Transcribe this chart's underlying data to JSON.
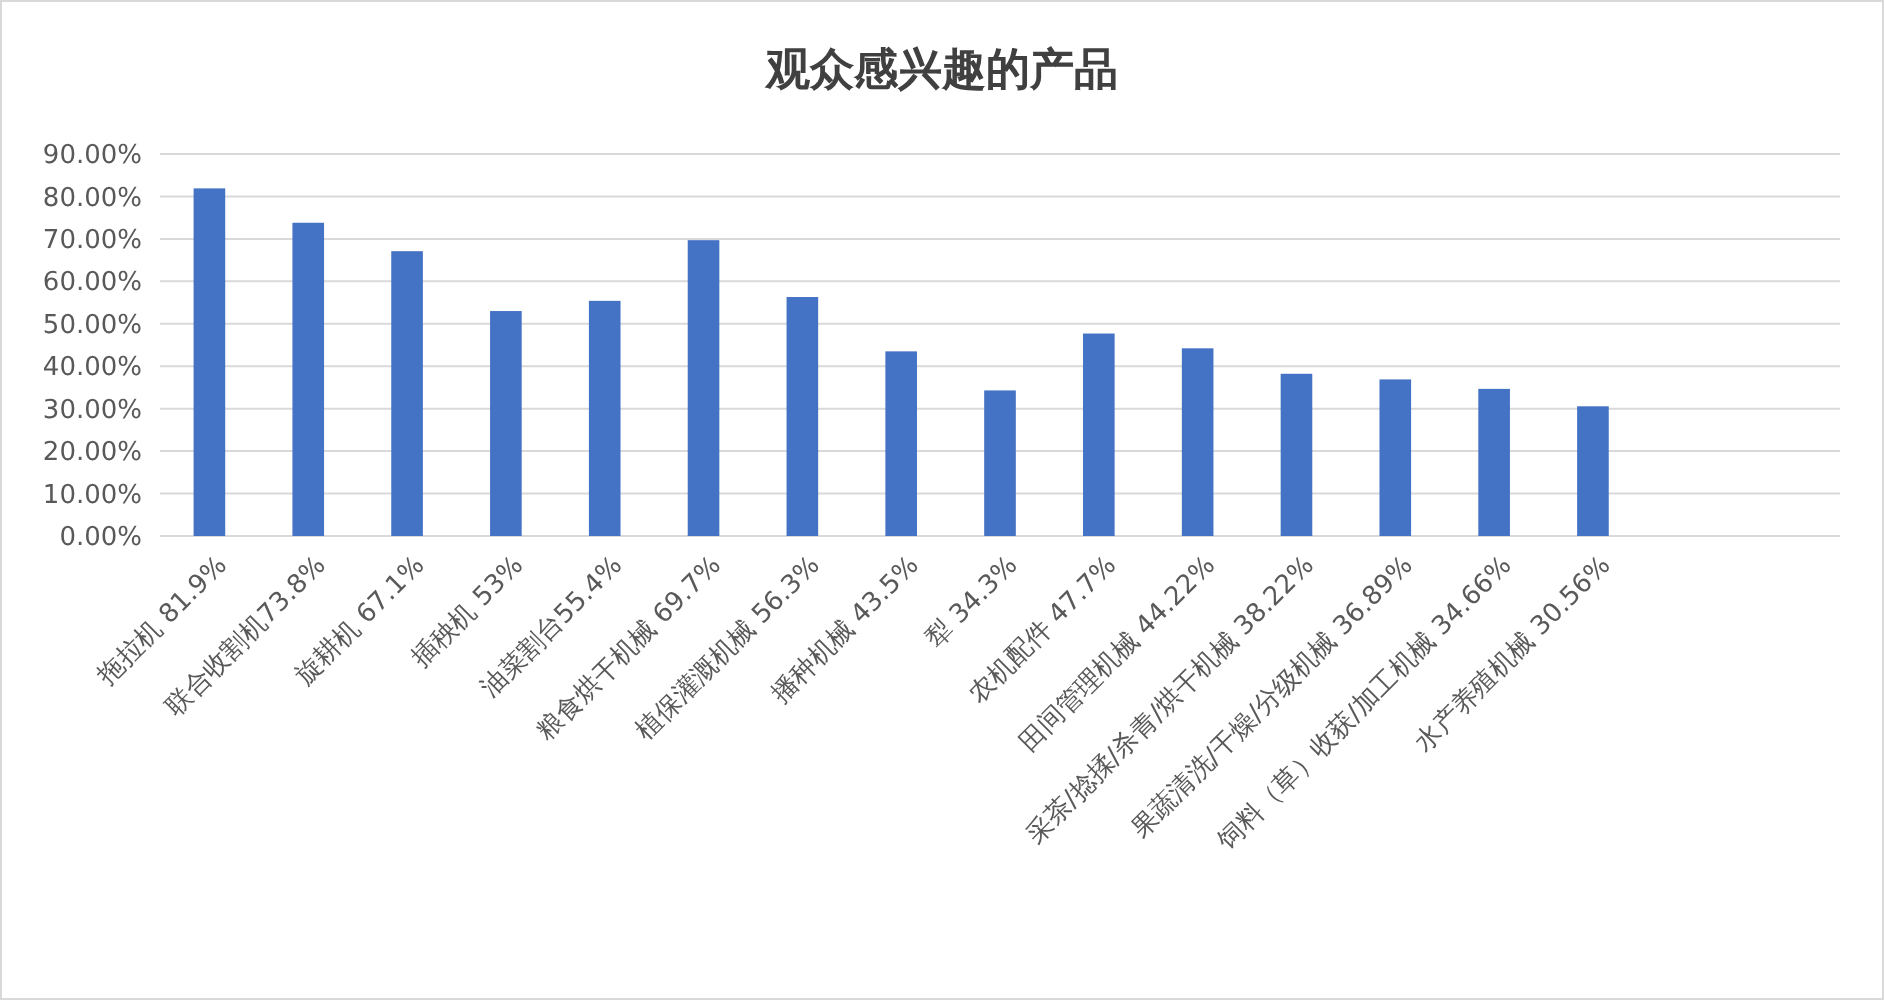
{
  "chart_data": {
    "type": "bar",
    "title": "观众感兴趣的产品",
    "categories": [
      "拖拉机 81.9%",
      "联合收割机73.8%",
      "旋耕机 67.1%",
      "插秧机 53%",
      "油菜割台55.4%",
      "粮食烘干机械 69.7%",
      "植保灌溉机械 56.3%",
      "播种机械 43.5%",
      "犁 34.3%",
      "农机配件 47.7%",
      "田间管理机械 44.22%",
      "采茶/捻揉/杀青/烘干机械 38.22%",
      "果蔬清洗/干燥/分级机械 36.89%",
      "饲料（草）收获/加工机械 34.66%",
      "水产养殖机械 30.56%",
      null,
      null
    ],
    "values": [
      81.9,
      73.8,
      67.1,
      53,
      55.4,
      69.7,
      56.3,
      43.5,
      34.3,
      47.7,
      44.22,
      38.22,
      36.89,
      34.66,
      30.56,
      null,
      null
    ],
    "color": "#4472c4",
    "ylim": [
      0,
      90
    ],
    "yticks": [
      {
        "value": 0,
        "label": "0.00%"
      },
      {
        "value": 10,
        "label": "10.00%"
      },
      {
        "value": 20,
        "label": "20.00%"
      },
      {
        "value": 30,
        "label": "30.00%"
      },
      {
        "value": 40,
        "label": "40.00%"
      },
      {
        "value": 50,
        "label": "50.00%"
      },
      {
        "value": 60,
        "label": "60.00%"
      },
      {
        "value": 70,
        "label": "70.00%"
      },
      {
        "value": 80,
        "label": "80.00%"
      },
      {
        "value": 90,
        "label": "90.00%"
      }
    ],
    "grid": "y"
  }
}
